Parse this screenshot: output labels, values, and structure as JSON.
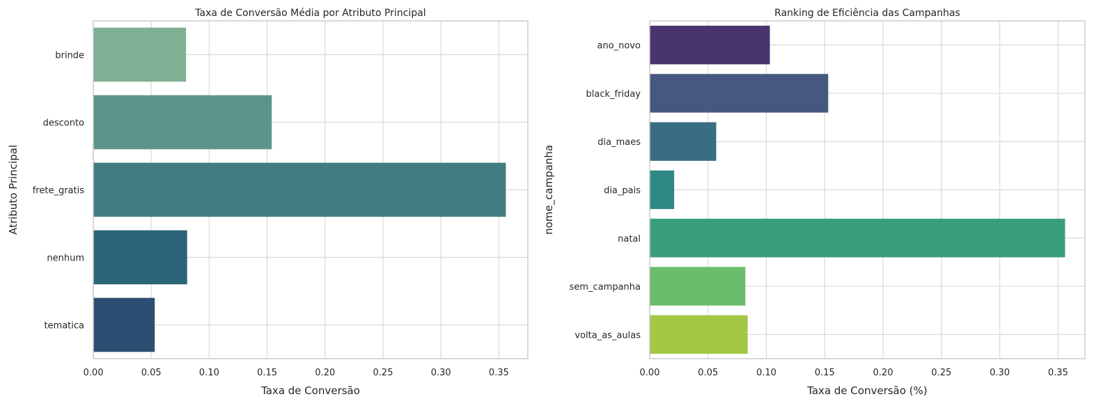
{
  "chart_data": [
    {
      "type": "bar",
      "orientation": "horizontal",
      "title": "Taxa de Conversão Média por Atributo Principal",
      "xlabel": "Taxa de Conversão",
      "ylabel": "Atributo Principal",
      "xlim": [
        0,
        0.375
      ],
      "x_ticks": [
        0.0,
        0.05,
        0.1,
        0.15,
        0.2,
        0.25,
        0.3,
        0.35
      ],
      "x_tick_labels": [
        "0.00",
        "0.05",
        "0.10",
        "0.15",
        "0.20",
        "0.25",
        "0.30",
        "0.35"
      ],
      "grid": true,
      "categories": [
        "brinde",
        "desconto",
        "frete_gratis",
        "nenhum",
        "tematica"
      ],
      "values": [
        0.08,
        0.154,
        0.356,
        0.081,
        0.053
      ],
      "colors": [
        "#7fb093",
        "#5b958a",
        "#407c80",
        "#2c6479",
        "#2d4e73"
      ]
    },
    {
      "type": "bar",
      "orientation": "horizontal",
      "title": "Ranking de Eficiência das Campanhas",
      "xlabel": "Taxa de Conversão (%)",
      "ylabel": "nome_campanha",
      "xlim": [
        0,
        0.373
      ],
      "x_ticks": [
        0.0,
        0.05,
        0.1,
        0.15,
        0.2,
        0.25,
        0.3,
        0.35
      ],
      "x_tick_labels": [
        "0.00",
        "0.05",
        "0.10",
        "0.15",
        "0.20",
        "0.25",
        "0.30",
        "0.35"
      ],
      "grid": true,
      "categories": [
        "ano_novo",
        "black_friday",
        "dia_maes",
        "dia_pais",
        "natal",
        "sem_campanha",
        "volta_as_aulas"
      ],
      "values": [
        0.103,
        0.153,
        0.057,
        0.021,
        0.356,
        0.082,
        0.084
      ],
      "colors": [
        "#4a3470",
        "#46587f",
        "#396e82",
        "#2e8884",
        "#3a9d7b",
        "#6abd6b",
        "#a1c745"
      ]
    }
  ]
}
